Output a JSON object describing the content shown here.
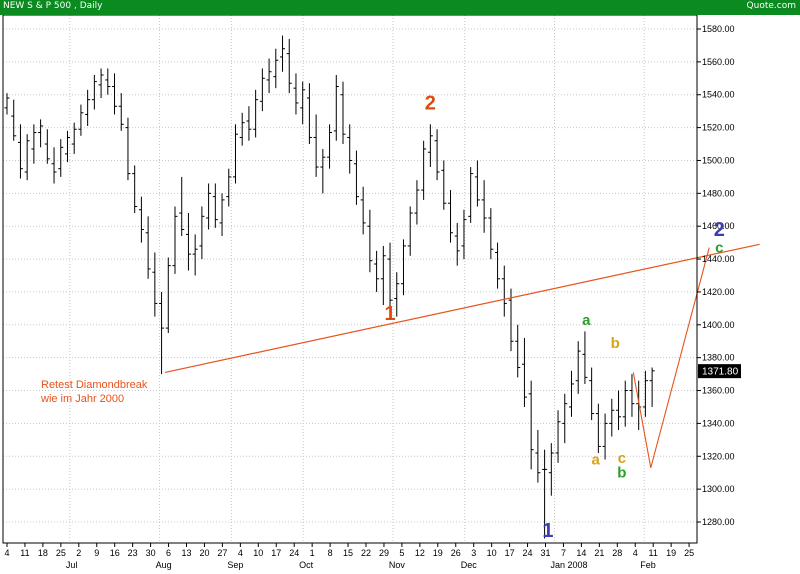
{
  "header": {
    "title": "NEW S & P 500",
    "period": ", Daily",
    "brand": "Quote.com"
  },
  "price_label": "1371.80",
  "colors": {
    "header_bg": "#0a8a1f",
    "bars": "#000000",
    "trendline": "#e8531d",
    "wave_red": "#dc4b12",
    "wave_green": "#2aa02a",
    "wave_gold": "#d9a21b",
    "wave_blue": "#3c3cb4"
  },
  "chart_data": {
    "type": "ohlc",
    "title": "NEW S & P 500 , Daily",
    "ylim": [
      1265,
      1590
    ],
    "yticks": [
      1280,
      1300,
      1320,
      1340,
      1360,
      1380,
      1400,
      1420,
      1440,
      1460,
      1480,
      1500,
      1520,
      1540,
      1560,
      1580
    ],
    "ytick_labels": [
      "1280.00",
      "1300.00",
      "1320.00",
      "1340.00",
      "1360.00",
      "1380.00",
      "1400.00",
      "1420.00",
      "1440.00",
      "1460.00",
      "1480.00",
      "1500.00",
      "1520.00",
      "1540.00",
      "1560.00",
      "1580.00"
    ],
    "x_day_labels": [
      "4",
      "11",
      "18",
      "25",
      "2",
      "9",
      "16",
      "23",
      "30",
      "6",
      "13",
      "20",
      "27",
      "4",
      "10",
      "17",
      "24",
      "1",
      "8",
      "15",
      "22",
      "29",
      "5",
      "12",
      "19",
      "26",
      "3",
      "10",
      "17",
      "24",
      "31",
      "7",
      "14",
      "21",
      "28",
      "4",
      "11",
      "19",
      "25"
    ],
    "x_month_labels": [
      {
        "label": "Jul",
        "after_day_index": 3
      },
      {
        "label": "Aug",
        "after_day_index": 8
      },
      {
        "label": "Sep",
        "after_day_index": 12
      },
      {
        "label": "Oct",
        "after_day_index": 16
      },
      {
        "label": "Nov",
        "after_day_index": 21
      },
      {
        "label": "Dec",
        "after_day_index": 25
      },
      {
        "label": "Jan 2008",
        "after_day_index": 30
      },
      {
        "label": "Feb",
        "after_day_index": 35
      }
    ],
    "series": [
      {
        "values": [
          [
            1532,
            1541,
            1528,
            1538
          ],
          [
            1527,
            1537,
            1512,
            1515
          ],
          [
            1511,
            1522,
            1489,
            1495
          ],
          [
            1493,
            1516,
            1488,
            1512
          ],
          [
            1507,
            1522,
            1498,
            1517
          ],
          [
            1517,
            1525,
            1508,
            1521
          ],
          [
            1510,
            1519,
            1498,
            1501
          ],
          [
            1498,
            1508,
            1486,
            1493
          ],
          [
            1495,
            1513,
            1490,
            1508
          ],
          [
            1504,
            1518,
            1499,
            1514
          ],
          [
            1510,
            1523,
            1504,
            1519
          ],
          [
            1519,
            1534,
            1515,
            1529
          ],
          [
            1528,
            1543,
            1521,
            1537
          ],
          [
            1537,
            1552,
            1531,
            1548
          ],
          [
            1546,
            1556,
            1538,
            1552
          ],
          [
            1549,
            1556,
            1540,
            1545
          ],
          [
            1545,
            1553,
            1528,
            1533
          ],
          [
            1533,
            1541,
            1518,
            1522
          ],
          [
            1520,
            1526,
            1488,
            1492
          ],
          [
            1492,
            1497,
            1468,
            1472
          ],
          [
            1470,
            1478,
            1450,
            1458
          ],
          [
            1456,
            1466,
            1428,
            1434
          ],
          [
            1432,
            1444,
            1405,
            1413
          ],
          [
            1413,
            1420,
            1370,
            1398
          ],
          [
            1398,
            1441,
            1395,
            1436
          ],
          [
            1436,
            1472,
            1431,
            1466
          ],
          [
            1468,
            1490,
            1454,
            1458
          ],
          [
            1455,
            1468,
            1433,
            1443
          ],
          [
            1443,
            1455,
            1430,
            1446
          ],
          [
            1448,
            1472,
            1440,
            1466
          ],
          [
            1465,
            1486,
            1458,
            1480
          ],
          [
            1478,
            1486,
            1459,
            1464
          ],
          [
            1462,
            1480,
            1454,
            1476
          ],
          [
            1478,
            1495,
            1472,
            1490
          ],
          [
            1490,
            1522,
            1486,
            1516
          ],
          [
            1514,
            1529,
            1509,
            1523
          ],
          [
            1524,
            1533,
            1512,
            1519
          ],
          [
            1519,
            1543,
            1514,
            1537
          ],
          [
            1536,
            1556,
            1530,
            1550
          ],
          [
            1549,
            1562,
            1541,
            1554
          ],
          [
            1551,
            1568,
            1544,
            1561
          ],
          [
            1563,
            1576,
            1554,
            1568
          ],
          [
            1565,
            1574,
            1541,
            1547
          ],
          [
            1544,
            1553,
            1528,
            1535
          ],
          [
            1532,
            1548,
            1522,
            1543
          ],
          [
            1538,
            1547,
            1510,
            1514
          ],
          [
            1514,
            1528,
            1490,
            1496
          ],
          [
            1496,
            1507,
            1480,
            1502
          ],
          [
            1502,
            1522,
            1495,
            1517
          ],
          [
            1518,
            1552,
            1512,
            1545
          ],
          [
            1540,
            1548,
            1510,
            1516
          ],
          [
            1514,
            1522,
            1492,
            1500
          ],
          [
            1498,
            1506,
            1473,
            1478
          ],
          [
            1476,
            1484,
            1455,
            1462
          ],
          [
            1460,
            1470,
            1432,
            1439
          ],
          [
            1437,
            1445,
            1420,
            1428
          ],
          [
            1428,
            1448,
            1412,
            1442
          ],
          [
            1440,
            1450,
            1410,
            1415
          ],
          [
            1416,
            1432,
            1405,
            1425
          ],
          [
            1425,
            1452,
            1418,
            1448
          ],
          [
            1448,
            1472,
            1442,
            1468
          ],
          [
            1468,
            1488,
            1461,
            1482
          ],
          [
            1482,
            1512,
            1476,
            1507
          ],
          [
            1505,
            1522,
            1496,
            1515
          ],
          [
            1512,
            1519,
            1488,
            1493
          ],
          [
            1494,
            1500,
            1470,
            1474
          ],
          [
            1474,
            1482,
            1450,
            1456
          ],
          [
            1454,
            1462,
            1436,
            1445
          ],
          [
            1448,
            1470,
            1440,
            1464
          ],
          [
            1466,
            1496,
            1462,
            1492
          ],
          [
            1490,
            1500,
            1472,
            1476
          ],
          [
            1476,
            1488,
            1456,
            1465
          ],
          [
            1465,
            1471,
            1440,
            1446
          ],
          [
            1444,
            1450,
            1422,
            1428
          ],
          [
            1428,
            1436,
            1405,
            1413
          ],
          [
            1415,
            1422,
            1384,
            1390
          ],
          [
            1390,
            1400,
            1368,
            1374
          ],
          [
            1376,
            1392,
            1350,
            1356
          ],
          [
            1358,
            1366,
            1312,
            1324
          ],
          [
            1322,
            1336,
            1304,
            1310
          ],
          [
            1312,
            1324,
            1270,
            1312
          ],
          [
            1310,
            1328,
            1296,
            1322
          ],
          [
            1322,
            1348,
            1316,
            1341
          ],
          [
            1340,
            1358,
            1328,
            1352
          ],
          [
            1350,
            1372,
            1344,
            1364
          ],
          [
            1366,
            1390,
            1358,
            1384
          ],
          [
            1382,
            1396,
            1364,
            1368
          ],
          [
            1366,
            1374,
            1342,
            1346
          ],
          [
            1346,
            1352,
            1322,
            1326
          ],
          [
            1326,
            1346,
            1318,
            1340
          ],
          [
            1340,
            1355,
            1332,
            1348
          ],
          [
            1348,
            1360,
            1336,
            1344
          ],
          [
            1344,
            1366,
            1338,
            1360
          ],
          [
            1360,
            1370,
            1344,
            1352
          ],
          [
            1352,
            1366,
            1336,
            1350
          ],
          [
            1350,
            1372,
            1344,
            1366
          ],
          [
            1366,
            1374,
            1350,
            1372
          ]
        ]
      }
    ],
    "trendline": {
      "start": [
        23.5,
        1371
      ],
      "end": [
        112,
        1449
      ]
    },
    "annotations": {
      "note_lines": [
        "Retest Diamondbreak",
        "wie im Jahr 2000"
      ],
      "waves": [
        {
          "label": "1",
          "x": 57,
          "y": 1403,
          "color": "wave_red"
        },
        {
          "label": "2",
          "x": 63,
          "y": 1531,
          "color": "wave_red"
        },
        {
          "label": "1",
          "x": 80.5,
          "y": 1271,
          "color": "wave_blue"
        },
        {
          "label": "a",
          "x": 86.2,
          "y": 1400,
          "color": "wave_green"
        },
        {
          "label": "b",
          "x": 91.5,
          "y": 1307,
          "color": "wave_green"
        },
        {
          "label": "c",
          "x": 106,
          "y": 1444,
          "color": "wave_green"
        },
        {
          "label": "2",
          "x": 106,
          "y": 1454,
          "color": "wave_blue"
        },
        {
          "label": "a",
          "x": 87.6,
          "y": 1315,
          "color": "wave_gold"
        },
        {
          "label": "b",
          "x": 90.5,
          "y": 1386,
          "color": "wave_gold"
        },
        {
          "label": "c",
          "x": 91.5,
          "y": 1316,
          "color": "wave_gold"
        }
      ],
      "projection_path": [
        [
          93.2,
          1371
        ],
        [
          95.8,
          1313
        ],
        [
          104.5,
          1447
        ]
      ]
    }
  }
}
